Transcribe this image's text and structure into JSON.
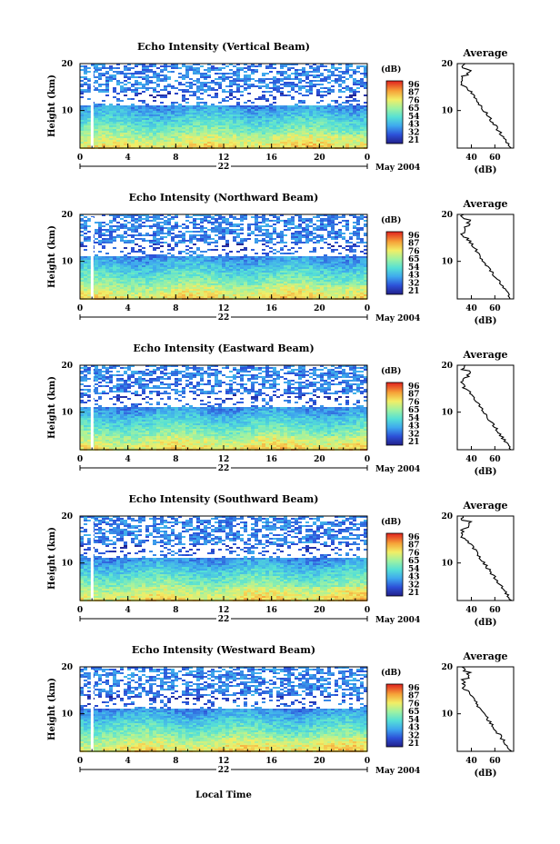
{
  "figure": {
    "xlabel": "Local Time",
    "date_label": "May 2004",
    "day_label": "22",
    "height_axis_label": "Height (km)",
    "colorbar_unit": "(dB)",
    "colorbar_ticks": [
      "96",
      "87",
      "76",
      "65",
      "54",
      "43",
      "32",
      "21"
    ],
    "avg_title": "Average",
    "avg_xlabel": "(dB)"
  },
  "chart_data": [
    {
      "type": "heatmap",
      "title": "Echo Intensity (Vertical Beam)",
      "ylabel": "Height (km)",
      "xlabel": "Local Time",
      "x_ticks": [
        "0",
        "4",
        "8",
        "12",
        "16",
        "20",
        "0"
      ],
      "y_ticks": [
        "20",
        "10"
      ],
      "xlim": [
        0,
        24
      ],
      "ylim": [
        2,
        20
      ],
      "colorbar": {
        "unit": "(dB)",
        "range": [
          21,
          96
        ]
      },
      "average_profile": {
        "xlabel": "(dB)",
        "x_ticks": [
          "40",
          "60"
        ],
        "y_ticks": [
          "20",
          "10"
        ]
      }
    },
    {
      "type": "heatmap",
      "title": "Echo Intensity (Northward Beam)",
      "ylabel": "Height (km)",
      "xlabel": "Local Time",
      "x_ticks": [
        "0",
        "4",
        "8",
        "12",
        "16",
        "20",
        "0"
      ],
      "y_ticks": [
        "20",
        "10"
      ],
      "xlim": [
        0,
        24
      ],
      "ylim": [
        2,
        20
      ],
      "colorbar": {
        "unit": "(dB)",
        "range": [
          21,
          96
        ]
      },
      "average_profile": {
        "xlabel": "(dB)",
        "x_ticks": [
          "40",
          "60"
        ],
        "y_ticks": [
          "20",
          "10"
        ]
      }
    },
    {
      "type": "heatmap",
      "title": "Echo Intensity (Eastward Beam)",
      "ylabel": "Height (km)",
      "xlabel": "Local Time",
      "x_ticks": [
        "0",
        "4",
        "8",
        "12",
        "16",
        "20",
        "0"
      ],
      "y_ticks": [
        "20",
        "10"
      ],
      "xlim": [
        0,
        24
      ],
      "ylim": [
        2,
        20
      ],
      "colorbar": {
        "unit": "(dB)",
        "range": [
          21,
          96
        ]
      },
      "average_profile": {
        "xlabel": "(dB)",
        "x_ticks": [
          "40",
          "60"
        ],
        "y_ticks": [
          "20",
          "10"
        ]
      }
    },
    {
      "type": "heatmap",
      "title": "Echo Intensity (Southward Beam)",
      "ylabel": "Height (km)",
      "xlabel": "Local Time",
      "x_ticks": [
        "0",
        "4",
        "8",
        "12",
        "16",
        "20",
        "0"
      ],
      "y_ticks": [
        "20",
        "10"
      ],
      "xlim": [
        0,
        24
      ],
      "ylim": [
        2,
        20
      ],
      "colorbar": {
        "unit": "(dB)",
        "range": [
          21,
          96
        ]
      },
      "average_profile": {
        "xlabel": "(dB)",
        "x_ticks": [
          "40",
          "60"
        ],
        "y_ticks": [
          "20",
          "10"
        ]
      }
    },
    {
      "type": "heatmap",
      "title": "Echo Intensity (Westward Beam)",
      "ylabel": "Height (km)",
      "xlabel": "Local Time",
      "x_ticks": [
        "0",
        "4",
        "8",
        "12",
        "16",
        "20",
        "0"
      ],
      "y_ticks": [
        "20",
        "10"
      ],
      "xlim": [
        0,
        24
      ],
      "ylim": [
        2,
        20
      ],
      "colorbar": {
        "unit": "(dB)",
        "range": [
          21,
          96
        ]
      },
      "average_profile": {
        "xlabel": "(dB)",
        "x_ticks": [
          "40",
          "60"
        ],
        "y_ticks": [
          "20",
          "10"
        ]
      }
    }
  ]
}
